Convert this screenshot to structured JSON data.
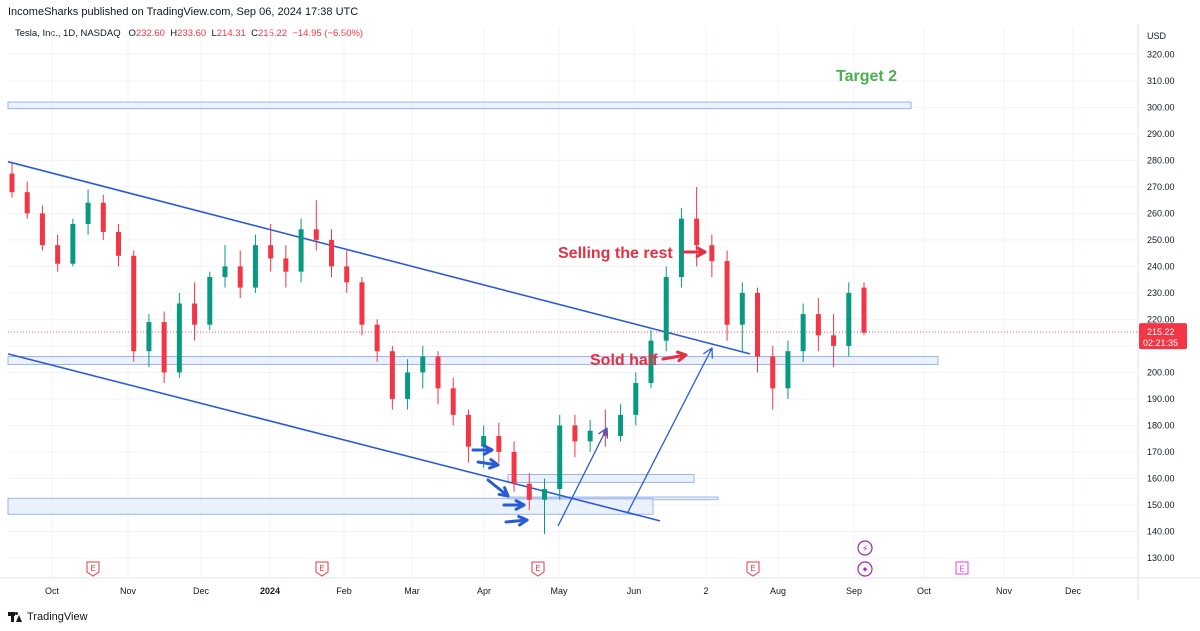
{
  "header": {
    "published": "IncomeSharks published on TradingView.com, Sep 06, 2024 17:38 UTC"
  },
  "symbol": {
    "name": "Tesla, Inc., 1D, NASDAQ",
    "o_label": "O",
    "o_value": "232.60",
    "h_label": "H",
    "h_value": "233.60",
    "l_label": "L",
    "l_value": "214.31",
    "c_label": "C",
    "c_value": "215.22",
    "change": "−14.95 (−6.50%)"
  },
  "price_scale": {
    "currency": "USD",
    "last_price": "215.22",
    "countdown": "02:21:35"
  },
  "annotations": {
    "target2": "Target 2",
    "selling_rest": "Selling the rest",
    "sold_half": "Sold half"
  },
  "event_markers": {
    "earnings_label": "E",
    "dividend_symbol": "⚡",
    "split_symbol": "✦"
  },
  "footer": {
    "brand": "TradingView"
  },
  "colors": {
    "up": "#089981",
    "down": "#f23645",
    "trendline": "#2a5bd7",
    "zone_fill": "#e3ecfb",
    "zone_stroke": "#9db5e8",
    "target_text": "#4caf50",
    "annotation_red": "#e53043"
  },
  "chart_data": {
    "type": "candlestick",
    "ylim": [
      125,
      330
    ],
    "yticks": [
      130,
      140,
      150,
      160,
      170,
      180,
      190,
      200,
      210,
      220,
      230,
      240,
      250,
      260,
      270,
      280,
      290,
      300,
      310,
      320
    ],
    "xtick_labels": [
      "Oct",
      "Nov",
      "Dec",
      "2024",
      "Feb",
      "Mar",
      "Apr",
      "May",
      "Jun",
      "2",
      "Aug",
      "Sep",
      "Oct",
      "Nov",
      "Dec"
    ],
    "grid": true,
    "last_price": 215.22,
    "ohlc": [
      [
        275,
        279,
        266,
        268
      ],
      [
        268,
        272,
        258,
        260
      ],
      [
        260,
        263,
        246,
        248
      ],
      [
        248,
        252,
        238,
        241
      ],
      [
        241,
        258,
        240,
        256
      ],
      [
        256,
        269,
        252,
        264
      ],
      [
        264,
        267,
        250,
        253
      ],
      [
        253,
        256,
        240,
        244
      ],
      [
        244,
        246,
        204,
        208
      ],
      [
        208,
        222,
        202,
        219
      ],
      [
        219,
        223,
        196,
        200
      ],
      [
        200,
        230,
        198,
        226
      ],
      [
        226,
        234,
        212,
        218
      ],
      [
        218,
        238,
        216,
        236
      ],
      [
        236,
        248,
        232,
        240
      ],
      [
        240,
        246,
        228,
        232
      ],
      [
        232,
        252,
        230,
        248
      ],
      [
        248,
        256,
        238,
        243
      ],
      [
        243,
        248,
        232,
        238
      ],
      [
        238,
        258,
        234,
        254
      ],
      [
        254,
        265,
        246,
        250
      ],
      [
        250,
        254,
        236,
        240
      ],
      [
        240,
        246,
        230,
        234
      ],
      [
        234,
        236,
        214,
        218
      ],
      [
        218,
        220,
        204,
        208
      ],
      [
        208,
        210,
        186,
        190
      ],
      [
        190,
        205,
        186,
        200
      ],
      [
        200,
        210,
        194,
        206
      ],
      [
        206,
        208,
        188,
        194
      ],
      [
        194,
        198,
        180,
        184
      ],
      [
        184,
        186,
        166,
        172
      ],
      [
        172,
        180,
        164,
        176
      ],
      [
        176,
        181,
        166,
        170
      ],
      [
        170,
        174,
        155,
        158
      ],
      [
        158,
        162,
        148,
        152
      ],
      [
        152,
        160,
        139,
        156
      ],
      [
        156,
        184,
        152,
        180
      ],
      [
        180,
        184,
        168,
        174
      ],
      [
        174,
        182,
        170,
        178
      ],
      [
        178,
        186,
        172,
        176
      ],
      [
        176,
        188,
        174,
        184
      ],
      [
        184,
        200,
        180,
        196
      ],
      [
        196,
        216,
        194,
        212
      ],
      [
        212,
        240,
        208,
        236
      ],
      [
        236,
        262,
        232,
        258
      ],
      [
        258,
        270,
        240,
        248
      ],
      [
        248,
        252,
        236,
        242
      ],
      [
        242,
        246,
        212,
        218
      ],
      [
        218,
        234,
        208,
        230
      ],
      [
        230,
        232,
        200,
        206
      ],
      [
        206,
        210,
        186,
        194
      ],
      [
        194,
        212,
        190,
        208
      ],
      [
        208,
        226,
        204,
        222
      ],
      [
        222,
        228,
        208,
        214
      ],
      [
        214,
        222,
        202,
        210
      ],
      [
        210,
        234,
        206,
        230
      ],
      [
        232,
        234,
        214,
        215
      ]
    ]
  }
}
